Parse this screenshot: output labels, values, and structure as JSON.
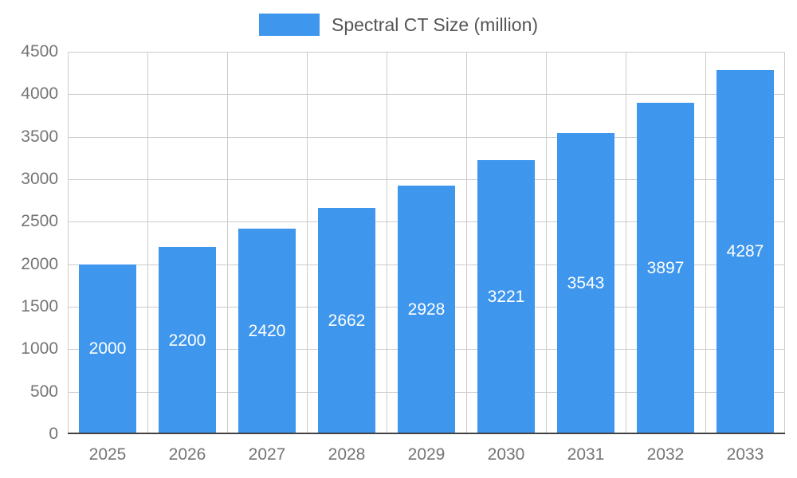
{
  "legend": {
    "label": "Spectral CT Size (million)"
  },
  "chart_data": {
    "type": "bar",
    "title": "Spectral CT Size (million)",
    "categories": [
      "2025",
      "2026",
      "2027",
      "2028",
      "2029",
      "2030",
      "2031",
      "2032",
      "2033"
    ],
    "values": [
      2000,
      2200,
      2420,
      2662,
      2928,
      3221,
      3543,
      3897,
      4287
    ],
    "xlabel": "",
    "ylabel": "",
    "ylim": [
      0,
      4500
    ],
    "yticks": [
      0,
      500,
      1000,
      1500,
      2000,
      2500,
      3000,
      3500,
      4000,
      4500
    ],
    "grid": true,
    "legend_position": "top-center",
    "value_labels": "inside-center"
  },
  "colors": {
    "bar": "#3E96ED",
    "grid": "#cccccc",
    "axis": "#424242",
    "tick_text": "#757575",
    "legend_text": "#555555",
    "value_text": "#ffffff"
  }
}
